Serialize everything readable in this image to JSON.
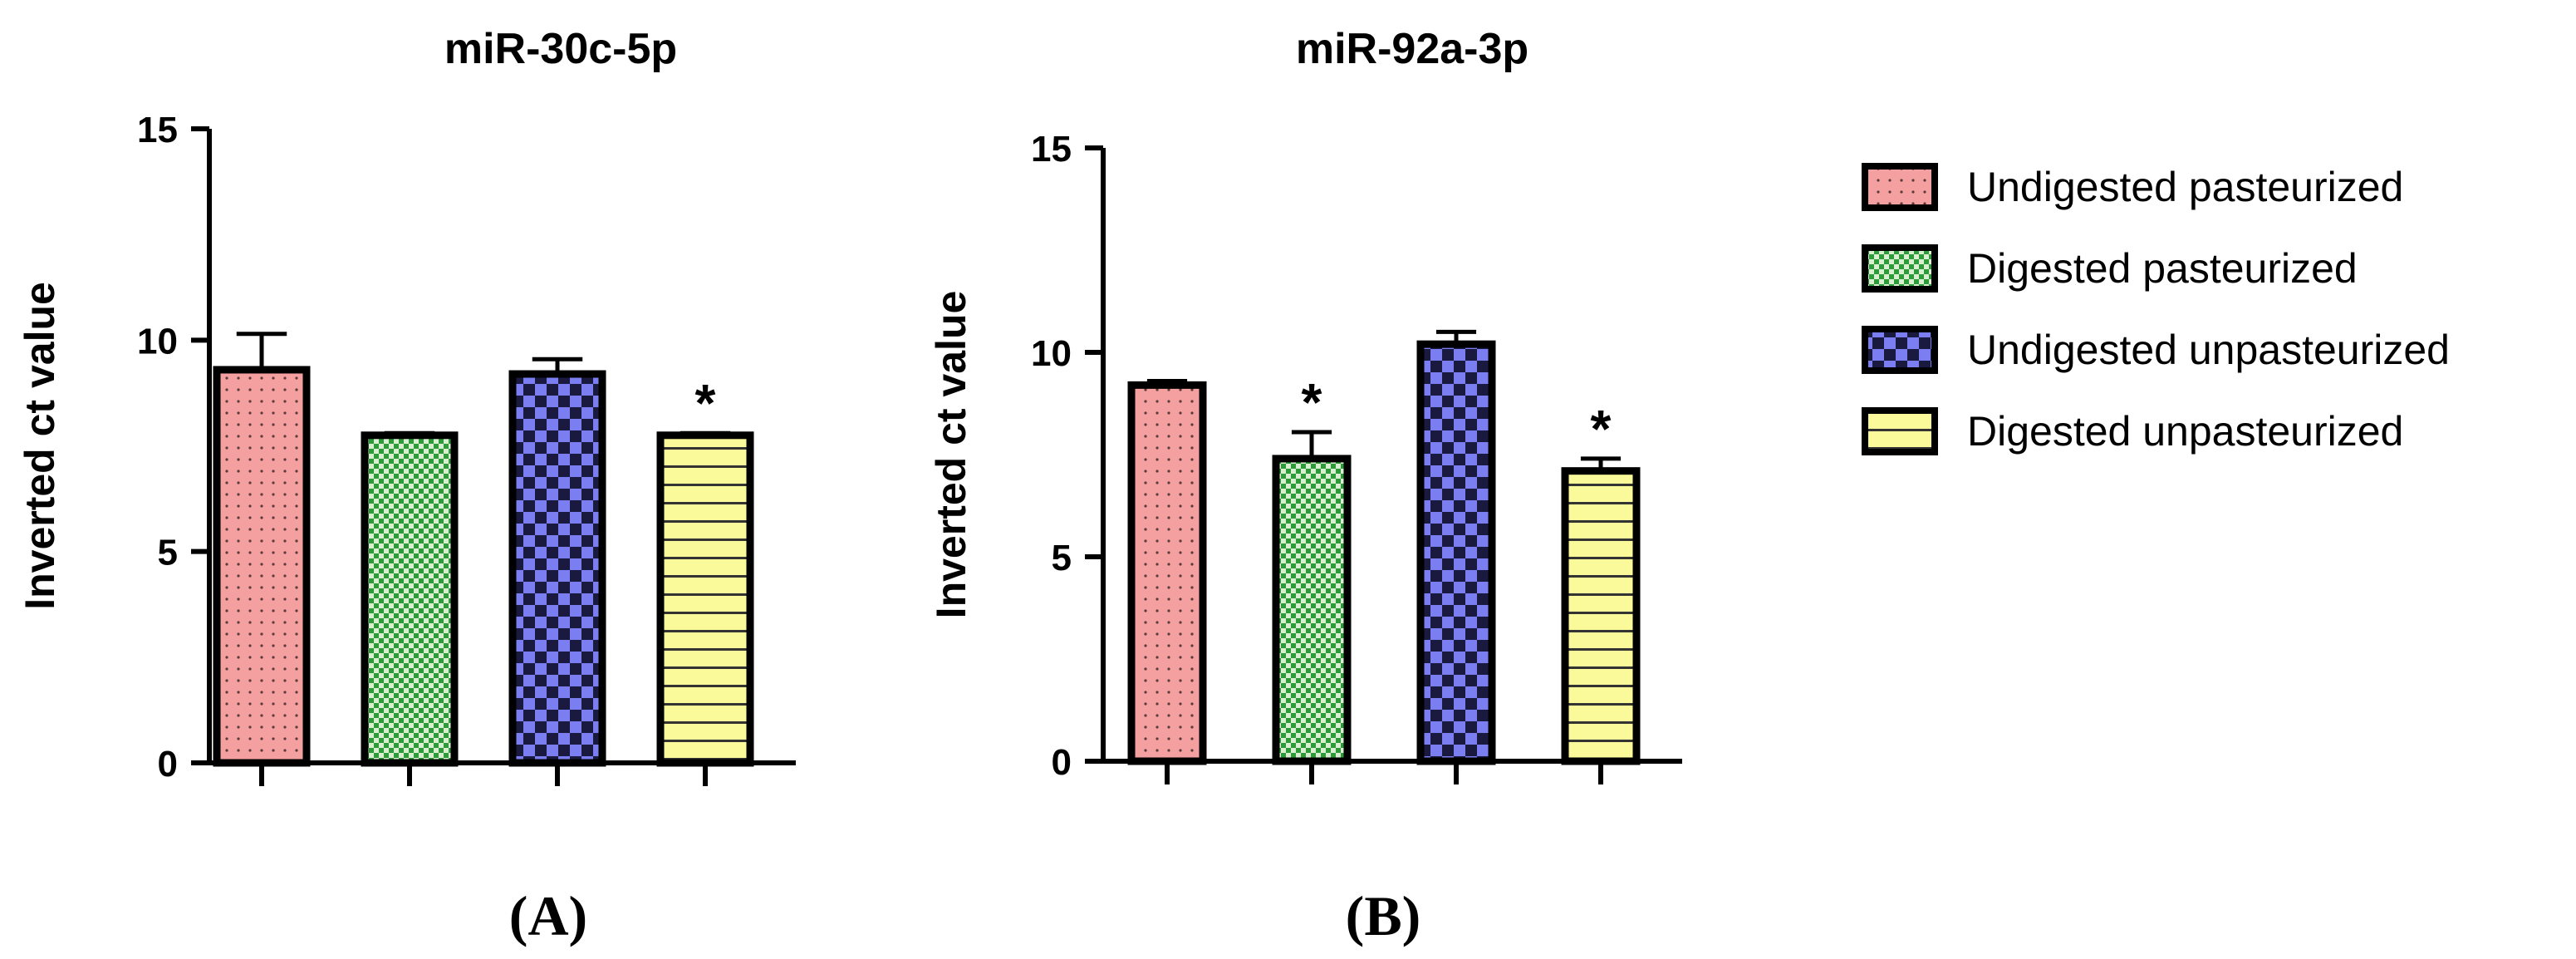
{
  "colors": {
    "undigested_pasteurized": "#f4a0a0",
    "digested_pasteurized": "#5fbf60",
    "undigested_unpasteurized": "#7b7ef0",
    "digested_unpasteurized": "#fafa9a",
    "axis": "#000000"
  },
  "legend": {
    "position": "right",
    "items": [
      {
        "key": "undigested_pasteurized",
        "label": "Undigested pasteurized",
        "pattern": "dots"
      },
      {
        "key": "digested_pasteurized",
        "label": "Digested pasteurized",
        "pattern": "fine-checker"
      },
      {
        "key": "undigested_unpasteurized",
        "label": "Undigested unpasteurized",
        "pattern": "checker"
      },
      {
        "key": "digested_unpasteurized",
        "label": "Digested unpasteurized",
        "pattern": "horizontal-lines"
      }
    ]
  },
  "chart_data": [
    {
      "type": "bar",
      "panel": "(A)",
      "title": "miR-30c-5p",
      "ylabel": "Inverted ct value",
      "xlabel": "",
      "ylim": [
        0,
        15
      ],
      "yticks": [
        0,
        5,
        10,
        15
      ],
      "categories": [
        "Undigested pasteurized",
        "Digested pasteurized",
        "Undigested unpasteurized",
        "Digested unpasteurized"
      ],
      "values": [
        9.3,
        7.75,
        9.2,
        7.75
      ],
      "errors": [
        0.85,
        0.05,
        0.35,
        0.05
      ],
      "significance": [
        "",
        "",
        "",
        "*"
      ]
    },
    {
      "type": "bar",
      "panel": "(B)",
      "title": "miR-92a-3p",
      "ylabel": "Inverted ct value",
      "xlabel": "",
      "ylim": [
        0,
        15
      ],
      "yticks": [
        0,
        5,
        10,
        15
      ],
      "categories": [
        "Undigested pasteurized",
        "Digested pasteurized",
        "Undigested unpasteurized",
        "Digested unpasteurized"
      ],
      "values": [
        9.2,
        7.4,
        10.2,
        7.1
      ],
      "errors": [
        0.1,
        0.65,
        0.3,
        0.3
      ],
      "significance": [
        "",
        "*",
        "",
        "*"
      ]
    }
  ]
}
